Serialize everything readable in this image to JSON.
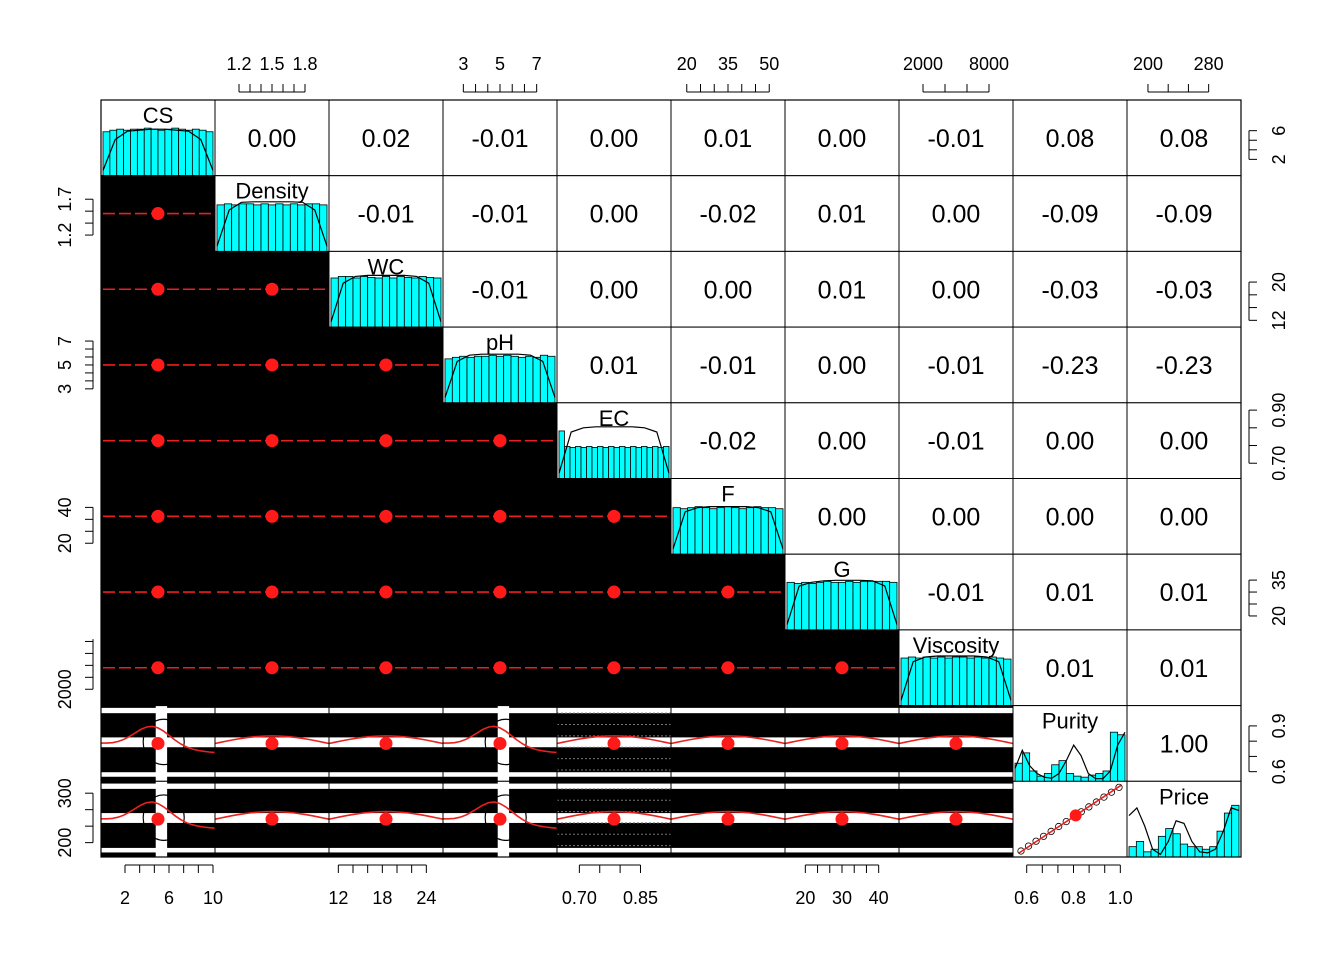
{
  "chart_data": {
    "type": "scatter-matrix",
    "variables": [
      "CS",
      "Density",
      "WC",
      "pH",
      "EC",
      "F",
      "G",
      "Viscosity",
      "Purity",
      "Price"
    ],
    "ranges": [
      [
        0,
        10
      ],
      [
        1.0,
        2.0
      ],
      [
        11,
        26
      ],
      [
        2,
        8
      ],
      [
        0.65,
        0.92
      ],
      [
        15,
        55
      ],
      [
        15,
        45
      ],
      [
        0,
        10000
      ],
      [
        0.55,
        1.02
      ],
      [
        175,
        320
      ]
    ],
    "scale_ticks": {
      "top": [
        {
          "var": 1,
          "ticks": [
            1.2,
            1.5,
            1.8
          ],
          "labels": [
            "1.2",
            "1.5",
            "1.8"
          ]
        },
        {
          "var": 3,
          "ticks": [
            3,
            5,
            7
          ],
          "labels": [
            "3",
            "5",
            "7"
          ]
        },
        {
          "var": 5,
          "ticks": [
            20,
            35,
            50
          ],
          "labels": [
            "20",
            "35",
            "50"
          ]
        },
        {
          "var": 7,
          "ticks": [
            2000,
            8000
          ],
          "labels": [
            "2000",
            "8000"
          ]
        },
        {
          "var": 9,
          "ticks": [
            200,
            280
          ],
          "labels": [
            "200",
            "280"
          ]
        }
      ],
      "bottom": [
        {
          "var": 0,
          "ticks": [
            2,
            6,
            10
          ],
          "labels": [
            "2",
            "6",
            "10"
          ]
        },
        {
          "var": 2,
          "ticks": [
            12,
            18,
            24
          ],
          "labels": [
            "12",
            "18",
            "24"
          ]
        },
        {
          "var": 4,
          "ticks": [
            0.7,
            0.85
          ],
          "labels": [
            "0.70",
            "0.85"
          ]
        },
        {
          "var": 6,
          "ticks": [
            20,
            30,
            40
          ],
          "labels": [
            "20",
            "30",
            "40"
          ]
        },
        {
          "var": 8,
          "ticks": [
            0.6,
            0.8,
            1.0
          ],
          "labels": [
            "0.6",
            "0.8",
            "1.0"
          ]
        }
      ],
      "left": [
        {
          "var": 1,
          "ticks": [
            1.2,
            1.7
          ],
          "labels": [
            "1.2",
            "1.7"
          ]
        },
        {
          "var": 3,
          "ticks": [
            3,
            5,
            7
          ],
          "labels": [
            "3",
            "5",
            "7"
          ]
        },
        {
          "var": 5,
          "ticks": [
            20,
            40
          ],
          "labels": [
            "20",
            "40"
          ]
        },
        {
          "var": 7,
          "ticks": [
            2000
          ],
          "labels": [
            "2000"
          ]
        },
        {
          "var": 9,
          "ticks": [
            200,
            300
          ],
          "labels": [
            "200",
            "300"
          ]
        }
      ],
      "right": [
        {
          "var": 0,
          "ticks": [
            2,
            6
          ],
          "labels": [
            "2",
            "6"
          ]
        },
        {
          "var": 2,
          "ticks": [
            12,
            20
          ],
          "labels": [
            "12",
            "20"
          ]
        },
        {
          "var": 4,
          "ticks": [
            0.7,
            0.9
          ],
          "labels": [
            "0.70",
            "0.90"
          ]
        },
        {
          "var": 6,
          "ticks": [
            20,
            35
          ],
          "labels": [
            "20",
            "35"
          ]
        },
        {
          "var": 8,
          "ticks": [
            0.6,
            0.9
          ],
          "labels": [
            "0.6",
            "0.9"
          ]
        }
      ]
    },
    "correlations": [
      {
        "row": 0,
        "col": 1,
        "value": "0.00"
      },
      {
        "row": 0,
        "col": 2,
        "value": "0.02"
      },
      {
        "row": 0,
        "col": 3,
        "value": "-0.01"
      },
      {
        "row": 0,
        "col": 4,
        "value": "0.00"
      },
      {
        "row": 0,
        "col": 5,
        "value": "0.01"
      },
      {
        "row": 0,
        "col": 6,
        "value": "0.00"
      },
      {
        "row": 0,
        "col": 7,
        "value": "-0.01"
      },
      {
        "row": 0,
        "col": 8,
        "value": "0.08"
      },
      {
        "row": 0,
        "col": 9,
        "value": "0.08"
      },
      {
        "row": 1,
        "col": 2,
        "value": "-0.01"
      },
      {
        "row": 1,
        "col": 3,
        "value": "-0.01"
      },
      {
        "row": 1,
        "col": 4,
        "value": "0.00"
      },
      {
        "row": 1,
        "col": 5,
        "value": "-0.02"
      },
      {
        "row": 1,
        "col": 6,
        "value": "0.01"
      },
      {
        "row": 1,
        "col": 7,
        "value": "0.00"
      },
      {
        "row": 1,
        "col": 8,
        "value": "-0.09"
      },
      {
        "row": 1,
        "col": 9,
        "value": "-0.09"
      },
      {
        "row": 2,
        "col": 3,
        "value": "-0.01"
      },
      {
        "row": 2,
        "col": 4,
        "value": "0.00"
      },
      {
        "row": 2,
        "col": 5,
        "value": "0.00"
      },
      {
        "row": 2,
        "col": 6,
        "value": "0.01"
      },
      {
        "row": 2,
        "col": 7,
        "value": "0.00"
      },
      {
        "row": 2,
        "col": 8,
        "value": "-0.03"
      },
      {
        "row": 2,
        "col": 9,
        "value": "-0.03"
      },
      {
        "row": 3,
        "col": 4,
        "value": "0.01"
      },
      {
        "row": 3,
        "col": 5,
        "value": "-0.01"
      },
      {
        "row": 3,
        "col": 6,
        "value": "0.00"
      },
      {
        "row": 3,
        "col": 7,
        "value": "-0.01"
      },
      {
        "row": 3,
        "col": 8,
        "value": "-0.23"
      },
      {
        "row": 3,
        "col": 9,
        "value": "-0.23"
      },
      {
        "row": 4,
        "col": 5,
        "value": "-0.02"
      },
      {
        "row": 4,
        "col": 6,
        "value": "0.00"
      },
      {
        "row": 4,
        "col": 7,
        "value": "-0.01"
      },
      {
        "row": 4,
        "col": 8,
        "value": "0.00"
      },
      {
        "row": 4,
        "col": 9,
        "value": "0.00"
      },
      {
        "row": 5,
        "col": 6,
        "value": "0.00"
      },
      {
        "row": 5,
        "col": 7,
        "value": "0.00"
      },
      {
        "row": 5,
        "col": 8,
        "value": "0.00"
      },
      {
        "row": 5,
        "col": 9,
        "value": "0.00"
      },
      {
        "row": 6,
        "col": 7,
        "value": "-0.01"
      },
      {
        "row": 6,
        "col": 8,
        "value": "0.01"
      },
      {
        "row": 6,
        "col": 9,
        "value": "0.01"
      },
      {
        "row": 7,
        "col": 8,
        "value": "0.01"
      },
      {
        "row": 7,
        "col": 9,
        "value": "0.01"
      },
      {
        "row": 8,
        "col": 9,
        "value": "1.00"
      }
    ],
    "histograms": [
      {
        "var": 0,
        "bars": [
          0.85,
          0.88,
          0.9,
          0.88,
          0.9,
          0.9,
          0.92,
          0.9,
          0.88,
          0.9,
          0.92,
          0.9,
          0.88,
          0.9,
          0.88,
          0.85
        ],
        "density": [
          0.1,
          0.7,
          0.86,
          0.88,
          0.9,
          0.9,
          0.88,
          0.86,
          0.7,
          0.1
        ]
      },
      {
        "var": 1,
        "bars": [
          0.9,
          0.92,
          0.9,
          0.92,
          0.92,
          0.9,
          0.92,
          0.9,
          0.92,
          0.9,
          0.92,
          0.9,
          0.92,
          0.92,
          0.9
        ],
        "density": [
          0.1,
          0.8,
          0.95,
          0.96,
          0.96,
          0.96,
          0.96,
          0.95,
          0.8,
          0.1
        ]
      },
      {
        "var": 2,
        "bars": [
          0.95,
          0.98,
          0.98,
          0.95,
          0.98,
          0.96,
          0.95,
          0.98,
          0.95,
          0.98,
          0.96,
          0.95,
          0.98,
          0.96,
          0.95
        ],
        "density": [
          0.1,
          0.85,
          0.98,
          1.0,
          1.0,
          1.0,
          1.0,
          0.98,
          0.85,
          0.1
        ]
      },
      {
        "var": 3,
        "bars": [
          0.85,
          0.88,
          0.9,
          0.88,
          0.9,
          0.9,
          0.92,
          0.9,
          0.92,
          0.9,
          0.88,
          0.9,
          0.88,
          0.92,
          0.9
        ],
        "density": [
          0.1,
          0.8,
          0.92,
          0.94,
          0.94,
          0.94,
          0.94,
          0.92,
          0.8,
          0.1
        ]
      },
      {
        "var": 4,
        "bars": [
          0.92,
          0.62,
          0.6,
          0.62,
          0.6,
          0.62,
          0.6,
          0.62,
          0.6,
          0.62,
          0.6,
          0.62,
          0.6,
          0.62,
          0.6,
          0.62,
          0.6,
          0.62,
          0.6,
          0.62
        ],
        "density": [
          0.1,
          0.9,
          0.98,
          1.0,
          1.0,
          1.0,
          1.0,
          0.98,
          0.9,
          0.1
        ]
      },
      {
        "var": 5,
        "bars": [
          0.9,
          0.88,
          0.9,
          0.92,
          0.9,
          0.88,
          0.9,
          0.92,
          0.9,
          0.88,
          0.9,
          0.92,
          0.9,
          0.9,
          0.88
        ],
        "density": [
          0.1,
          0.82,
          0.9,
          0.92,
          0.92,
          0.92,
          0.92,
          0.9,
          0.82,
          0.1
        ]
      },
      {
        "var": 6,
        "bars": [
          0.92,
          0.9,
          0.92,
          0.9,
          0.92,
          0.94,
          0.92,
          0.92,
          0.94,
          0.92,
          0.94,
          0.94,
          0.94,
          0.94,
          0.92
        ],
        "density": [
          0.1,
          0.85,
          0.92,
          0.95,
          0.96,
          0.96,
          0.96,
          0.95,
          0.85,
          0.1
        ]
      },
      {
        "var": 7,
        "bars": [
          0.92,
          0.94,
          0.92,
          0.94,
          0.92,
          0.94,
          0.92,
          0.94,
          0.94,
          0.92,
          0.94,
          0.92,
          0.94,
          0.92,
          0.9
        ],
        "density": [
          0.1,
          0.85,
          0.94,
          0.96,
          0.96,
          0.96,
          0.96,
          0.94,
          0.85,
          0.1
        ]
      },
      {
        "var": 8,
        "bars": [
          0.35,
          0.55,
          0.2,
          0.1,
          0.15,
          0.32,
          0.4,
          0.15,
          0.1,
          0.08,
          0.12,
          0.15,
          0.2,
          0.95,
          0.9
        ],
        "density": [
          0.25,
          0.6,
          0.3,
          0.15,
          0.08,
          0.06,
          0.15,
          0.4,
          0.7,
          0.5,
          0.15,
          0.05,
          0.05,
          0.2,
          0.7,
          0.95
        ]
      },
      {
        "var": 9,
        "bars": [
          0.2,
          0.3,
          0.1,
          0.15,
          0.4,
          0.55,
          0.45,
          0.25,
          0.2,
          0.2,
          0.15,
          0.2,
          0.5,
          0.85,
          1.0
        ],
        "density": [
          0.8,
          0.95,
          0.6,
          0.15,
          0.05,
          0.3,
          0.7,
          0.65,
          0.3,
          0.1,
          0.08,
          0.15,
          0.5,
          0.95,
          0.9
        ]
      }
    ],
    "lower_panel_style": "black overplotted points, red loess smoother, red mean dot"
  }
}
